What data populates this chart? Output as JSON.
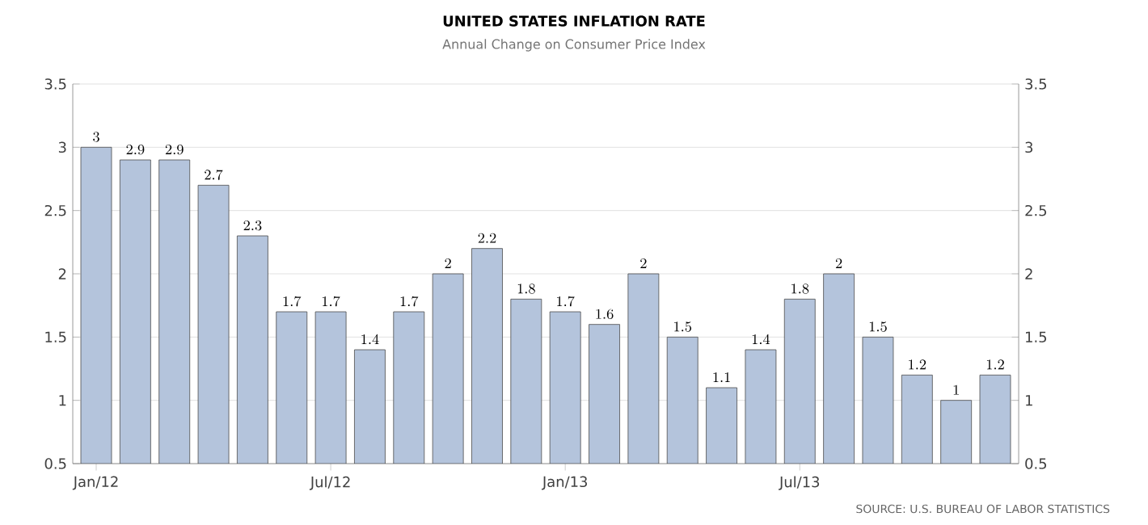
{
  "chart_data": {
    "type": "bar",
    "title": "UNITED STATES INFLATION RATE",
    "subtitle": "Annual Change on Consumer Price Index",
    "categories": [
      "Jan/12",
      null,
      null,
      null,
      null,
      null,
      "Jul/12",
      null,
      null,
      null,
      null,
      null,
      "Jan/13",
      null,
      null,
      null,
      null,
      null,
      "Jul/13",
      null,
      null,
      null,
      null,
      null
    ],
    "values": [
      3,
      2.9,
      2.9,
      2.7,
      2.3,
      1.7,
      1.7,
      1.4,
      1.7,
      2,
      2.2,
      1.8,
      1.7,
      1.6,
      2,
      1.5,
      1.1,
      1.4,
      1.8,
      2,
      1.5,
      1.2,
      1,
      1.2
    ],
    "color": "#b4c4dc",
    "data_labels": true,
    "ylim": [
      0.5,
      3.5
    ],
    "yticks": [
      0.5,
      1,
      1.5,
      2,
      2.5,
      3,
      3.5
    ],
    "y2lim": [
      0.5,
      3.5
    ],
    "y2ticks": [
      0.5,
      1,
      1.5,
      2,
      2.5,
      3,
      3.5
    ],
    "grid": "y",
    "annotations": [
      "SOURCE: U.S. BUREAU OF LABOR STATISTICS"
    ]
  }
}
